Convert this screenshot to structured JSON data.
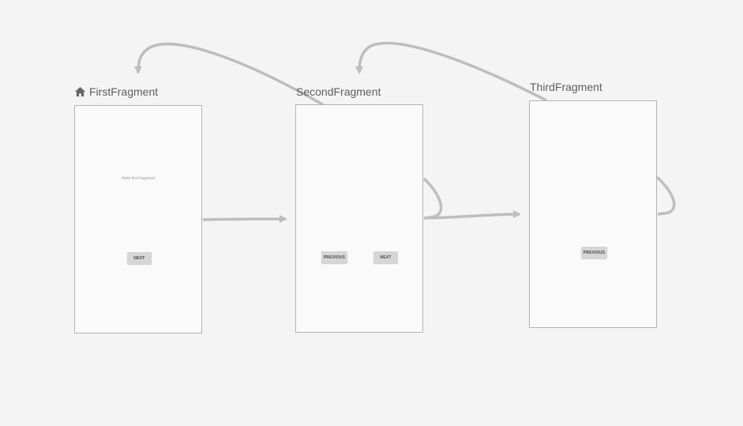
{
  "colors": {
    "background": "#f4f4f4",
    "screen_fill": "#fafafa",
    "screen_border": "#b3b3b3",
    "arrow": "#bdbdbd",
    "label_text": "#5e5e5e",
    "button_fill": "#d6d6d6"
  },
  "start_destination_icon": "home-icon",
  "destinations": [
    {
      "label": "FirstFragment",
      "is_start": true,
      "text": "Hello first fragment",
      "buttons": [
        "NEXT"
      ]
    },
    {
      "label": "SecondFragment",
      "is_start": false,
      "buttons": [
        "PREVIOUS",
        "NEXT"
      ]
    },
    {
      "label": "ThirdFragment",
      "is_start": false,
      "buttons": [
        "PREVIOUS"
      ]
    }
  ],
  "actions": [
    {
      "from": "FirstFragment",
      "to": "SecondFragment"
    },
    {
      "from": "SecondFragment",
      "to": "ThirdFragment"
    },
    {
      "from": "SecondFragment",
      "to": "FirstFragment"
    },
    {
      "from": "ThirdFragment",
      "to": "SecondFragment"
    },
    {
      "from": "SecondFragment",
      "to": "SecondFragment"
    },
    {
      "from": "ThirdFragment",
      "to": "ThirdFragment"
    }
  ]
}
